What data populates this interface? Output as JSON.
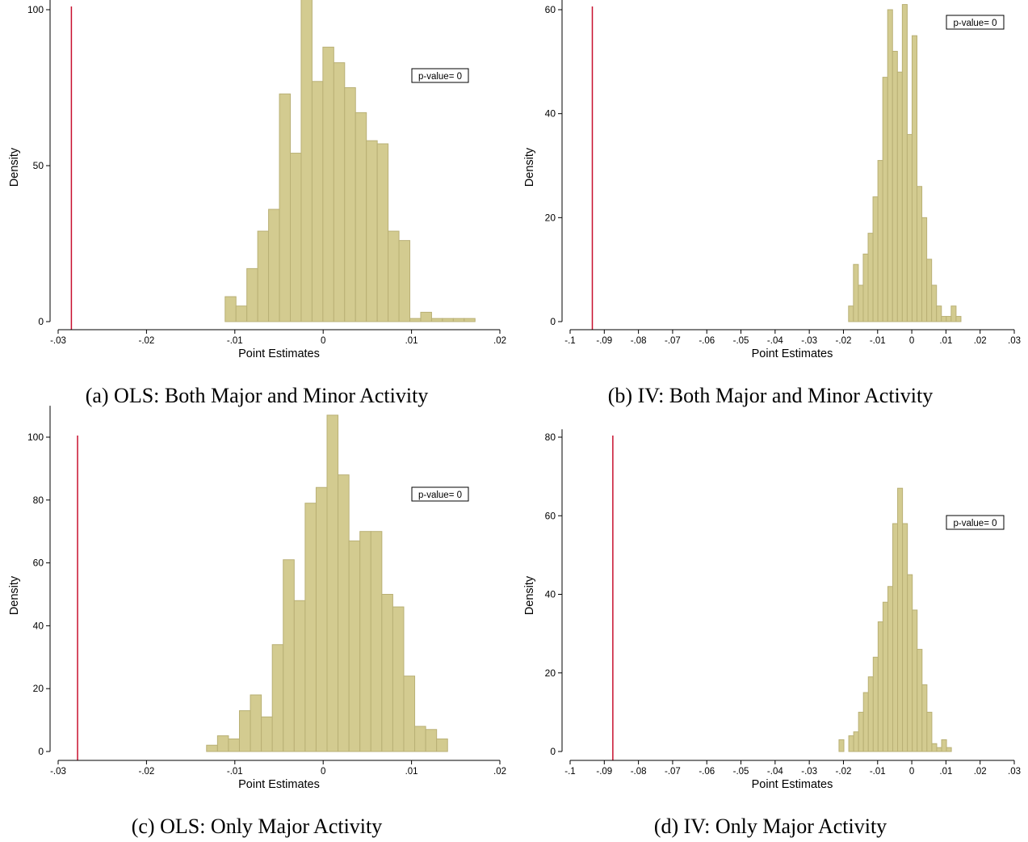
{
  "chart_data": [
    {
      "type": "bar",
      "panel": "a",
      "caption": "(a) OLS: Both Major and Minor Activity",
      "xlabel": "Point Estimates",
      "ylabel": "Density",
      "xlim": [
        -0.03,
        0.02
      ],
      "ylim": [
        0,
        112
      ],
      "xticks": [
        -0.03,
        -0.02,
        -0.01,
        0,
        0.01,
        0.02
      ],
      "xtick_labels": [
        "-.03",
        "-.02",
        "-.01",
        "0",
        ".01",
        ".02"
      ],
      "yticks": [
        0,
        50,
        100
      ],
      "ytick_labels": [
        "0",
        "50",
        "100"
      ],
      "bin_start": -0.0111,
      "bin_width": 0.00123,
      "values": [
        8,
        5,
        17,
        29,
        36,
        73,
        54,
        112,
        77,
        88,
        83,
        75,
        67,
        58,
        57,
        29,
        26,
        1,
        3,
        1,
        1,
        1,
        1
      ],
      "observed_estimate": -0.0285,
      "annotation": "p-value= 0",
      "bar_color": "#d3cb90",
      "bar_edge_color": "#b9b075",
      "reference_line_color": "#c8102e"
    },
    {
      "type": "bar",
      "panel": "b",
      "caption": "(b) IV: Both Major and Minor Activity",
      "xlabel": "Point Estimates",
      "ylabel": "Density",
      "xlim": [
        -0.1,
        0.03
      ],
      "ylim": [
        0,
        62
      ],
      "xticks": [
        -0.1,
        -0.09,
        -0.08,
        -0.07,
        -0.06,
        -0.05,
        -0.04,
        -0.03,
        -0.02,
        -0.01,
        0,
        0.01,
        0.02,
        0.03
      ],
      "xtick_labels": [
        "-.1",
        "-.09",
        "-.08",
        "-.07",
        "-.06",
        "-.05",
        "-.04",
        "-.03",
        "-.02",
        "-.01",
        "0",
        ".01",
        ".02",
        ".03"
      ],
      "yticks": [
        0,
        20,
        40,
        60
      ],
      "ytick_labels": [
        "0",
        "20",
        "40",
        "60"
      ],
      "bin_start": -0.0185,
      "bin_width": 0.00143,
      "values": [
        3,
        11,
        7,
        13,
        17,
        24,
        31,
        47,
        60,
        52,
        48,
        61,
        36,
        55,
        26,
        20,
        12,
        7,
        3,
        1,
        1,
        3,
        1
      ],
      "observed_estimate": -0.0935,
      "annotation": "p-value= 0",
      "bar_color": "#d3cb90",
      "bar_edge_color": "#b9b075",
      "reference_line_color": "#c8102e"
    },
    {
      "type": "bar",
      "panel": "c",
      "caption": "(c) OLS: Only Major Activity",
      "xlabel": "Point Estimates",
      "ylabel": "Density",
      "xlim": [
        -0.03,
        0.02
      ],
      "ylim": [
        0,
        110
      ],
      "xticks": [
        -0.03,
        -0.02,
        -0.01,
        0,
        0.01,
        0.02
      ],
      "xtick_labels": [
        "-.03",
        "-.02",
        "-.01",
        "0",
        ".01",
        ".02"
      ],
      "yticks": [
        0,
        20,
        40,
        60,
        80,
        100
      ],
      "ytick_labels": [
        "0",
        "20",
        "40",
        "60",
        "80",
        "100"
      ],
      "bin_start": -0.0132,
      "bin_width": 0.00124,
      "values": [
        2,
        5,
        4,
        13,
        18,
        11,
        34,
        61,
        48,
        79,
        84,
        107,
        88,
        67,
        70,
        70,
        50,
        46,
        24,
        8,
        7,
        4
      ],
      "observed_estimate": -0.0278,
      "annotation": "p-value= 0",
      "bar_color": "#d3cb90",
      "bar_edge_color": "#b9b075",
      "reference_line_color": "#c8102e"
    },
    {
      "type": "bar",
      "panel": "d",
      "caption": "(d) IV: Only Major Activity",
      "xlabel": "Point Estimates",
      "ylabel": "Density",
      "xlim": [
        -0.1,
        0.03
      ],
      "ylim": [
        0,
        82
      ],
      "xticks": [
        -0.1,
        -0.09,
        -0.08,
        -0.07,
        -0.06,
        -0.05,
        -0.04,
        -0.03,
        -0.02,
        -0.01,
        0,
        0.01,
        0.02,
        0.03
      ],
      "xtick_labels": [
        "-.1",
        "-.09",
        "-.08",
        "-.07",
        "-.06",
        "-.05",
        "-.04",
        "-.03",
        "-.02",
        "-.01",
        "0",
        ".01",
        ".02",
        ".03"
      ],
      "yticks": [
        0,
        20,
        40,
        60,
        80
      ],
      "ytick_labels": [
        "0",
        "20",
        "40",
        "60",
        "80"
      ],
      "bin_start": -0.0213,
      "bin_width": 0.00143,
      "values": [
        3,
        0,
        4,
        5,
        10,
        15,
        19,
        24,
        33,
        38,
        42,
        58,
        67,
        58,
        45,
        36,
        26,
        17,
        10,
        2,
        1,
        3,
        1
      ],
      "observed_estimate": -0.0875,
      "annotation": "p-value= 0",
      "bar_color": "#d3cb90",
      "bar_edge_color": "#b9b075",
      "reference_line_color": "#c8102e"
    }
  ]
}
